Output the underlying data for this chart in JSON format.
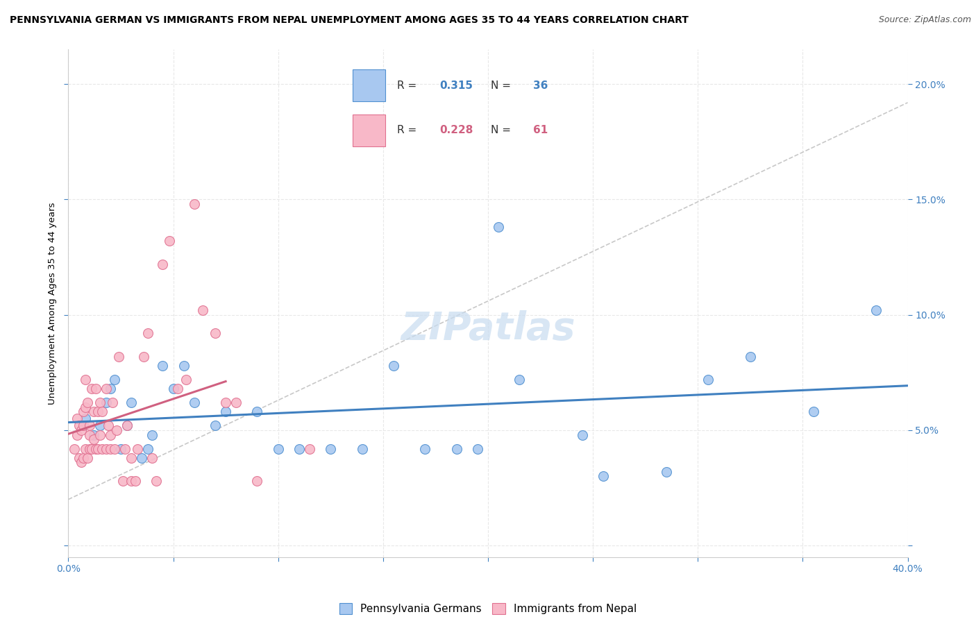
{
  "title": "PENNSYLVANIA GERMAN VS IMMIGRANTS FROM NEPAL UNEMPLOYMENT AMONG AGES 35 TO 44 YEARS CORRELATION CHART",
  "source": "Source: ZipAtlas.com",
  "ylabel": "Unemployment Among Ages 35 to 44 years",
  "xlim": [
    0.0,
    0.4
  ],
  "ylim": [
    -0.005,
    0.215
  ],
  "xticks": [
    0.0,
    0.05,
    0.1,
    0.15,
    0.2,
    0.25,
    0.3,
    0.35,
    0.4
  ],
  "yticks": [
    0.0,
    0.05,
    0.1,
    0.15,
    0.2
  ],
  "blue_R": 0.315,
  "blue_N": 36,
  "pink_R": 0.228,
  "pink_N": 61,
  "blue_color": "#A8C8F0",
  "pink_color": "#F8B8C8",
  "blue_edge_color": "#5090D0",
  "pink_edge_color": "#E07090",
  "blue_line_color": "#4080C0",
  "pink_line_color": "#D06080",
  "dashed_line_color": "#C8C8C8",
  "grid_color": "#E8E8E8",
  "watermark_text": "ZIPatlas",
  "watermark_color": "#C8DCF0",
  "blue_scatter_x": [
    0.008,
    0.012,
    0.015,
    0.018,
    0.02,
    0.022,
    0.025,
    0.028,
    0.03,
    0.035,
    0.038,
    0.04,
    0.045,
    0.05,
    0.055,
    0.06,
    0.07,
    0.075,
    0.09,
    0.1,
    0.11,
    0.125,
    0.14,
    0.155,
    0.17,
    0.185,
    0.195,
    0.205,
    0.215,
    0.245,
    0.255,
    0.285,
    0.305,
    0.325,
    0.355,
    0.385
  ],
  "blue_scatter_y": [
    0.055,
    0.048,
    0.052,
    0.062,
    0.068,
    0.072,
    0.042,
    0.052,
    0.062,
    0.038,
    0.042,
    0.048,
    0.078,
    0.068,
    0.078,
    0.062,
    0.052,
    0.058,
    0.058,
    0.042,
    0.042,
    0.042,
    0.042,
    0.078,
    0.042,
    0.042,
    0.042,
    0.138,
    0.072,
    0.048,
    0.03,
    0.032,
    0.072,
    0.082,
    0.058,
    0.102
  ],
  "pink_scatter_x": [
    0.003,
    0.004,
    0.004,
    0.005,
    0.005,
    0.006,
    0.006,
    0.007,
    0.007,
    0.007,
    0.008,
    0.008,
    0.008,
    0.009,
    0.009,
    0.01,
    0.01,
    0.01,
    0.011,
    0.011,
    0.012,
    0.012,
    0.013,
    0.013,
    0.014,
    0.014,
    0.015,
    0.015,
    0.016,
    0.016,
    0.018,
    0.018,
    0.019,
    0.02,
    0.02,
    0.021,
    0.022,
    0.023,
    0.024,
    0.026,
    0.027,
    0.028,
    0.03,
    0.03,
    0.032,
    0.033,
    0.036,
    0.038,
    0.04,
    0.042,
    0.045,
    0.048,
    0.052,
    0.056,
    0.06,
    0.064,
    0.07,
    0.075,
    0.08,
    0.09,
    0.115
  ],
  "pink_scatter_y": [
    0.042,
    0.048,
    0.055,
    0.038,
    0.052,
    0.036,
    0.05,
    0.038,
    0.052,
    0.058,
    0.042,
    0.06,
    0.072,
    0.038,
    0.062,
    0.042,
    0.048,
    0.052,
    0.042,
    0.068,
    0.046,
    0.058,
    0.042,
    0.068,
    0.042,
    0.058,
    0.048,
    0.062,
    0.042,
    0.058,
    0.042,
    0.068,
    0.052,
    0.042,
    0.048,
    0.062,
    0.042,
    0.05,
    0.082,
    0.028,
    0.042,
    0.052,
    0.028,
    0.038,
    0.028,
    0.042,
    0.082,
    0.092,
    0.038,
    0.028,
    0.122,
    0.132,
    0.068,
    0.072,
    0.148,
    0.102,
    0.092,
    0.062,
    0.062,
    0.028,
    0.042
  ],
  "title_fontsize": 10,
  "source_fontsize": 9,
  "axis_label_fontsize": 9.5,
  "tick_fontsize": 10,
  "legend_fontsize": 11
}
